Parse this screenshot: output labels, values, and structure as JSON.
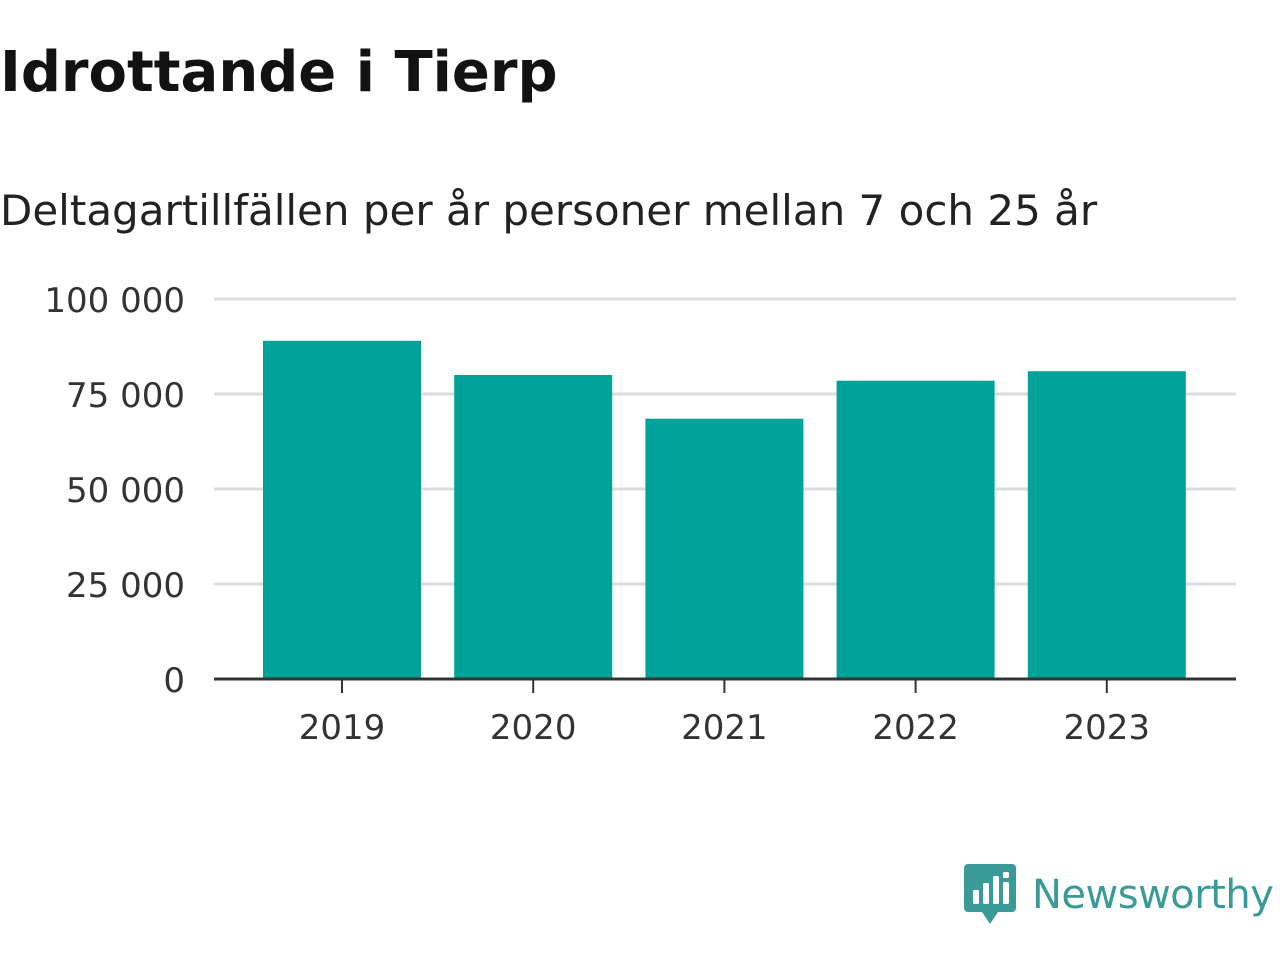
{
  "header": {
    "title": "Idrottande i Tierp",
    "subtitle": "Deltagartillfällen per år personer mellan 7 och 25 år"
  },
  "brand": {
    "name": "Newsworthy",
    "color": "#3a9a98",
    "icon": "bar-chart-speech-bubble-icon"
  },
  "chart_data": {
    "type": "bar",
    "title": "Idrottande i Tierp",
    "subtitle": "Deltagartillfällen per år personer mellan 7 och 25 år",
    "categories": [
      "2019",
      "2020",
      "2021",
      "2022",
      "2023"
    ],
    "values": [
      89000,
      80000,
      68500,
      78500,
      81000
    ],
    "ylim": [
      0,
      100000
    ],
    "yticks": [
      0,
      25000,
      50000,
      75000,
      100000
    ],
    "ytick_labels": [
      "0",
      "25 000",
      "50 000",
      "75 000",
      "100 000"
    ],
    "xlabel": "",
    "ylabel": "",
    "grid": true,
    "bar_color": "#00a39a",
    "legend": "none"
  }
}
